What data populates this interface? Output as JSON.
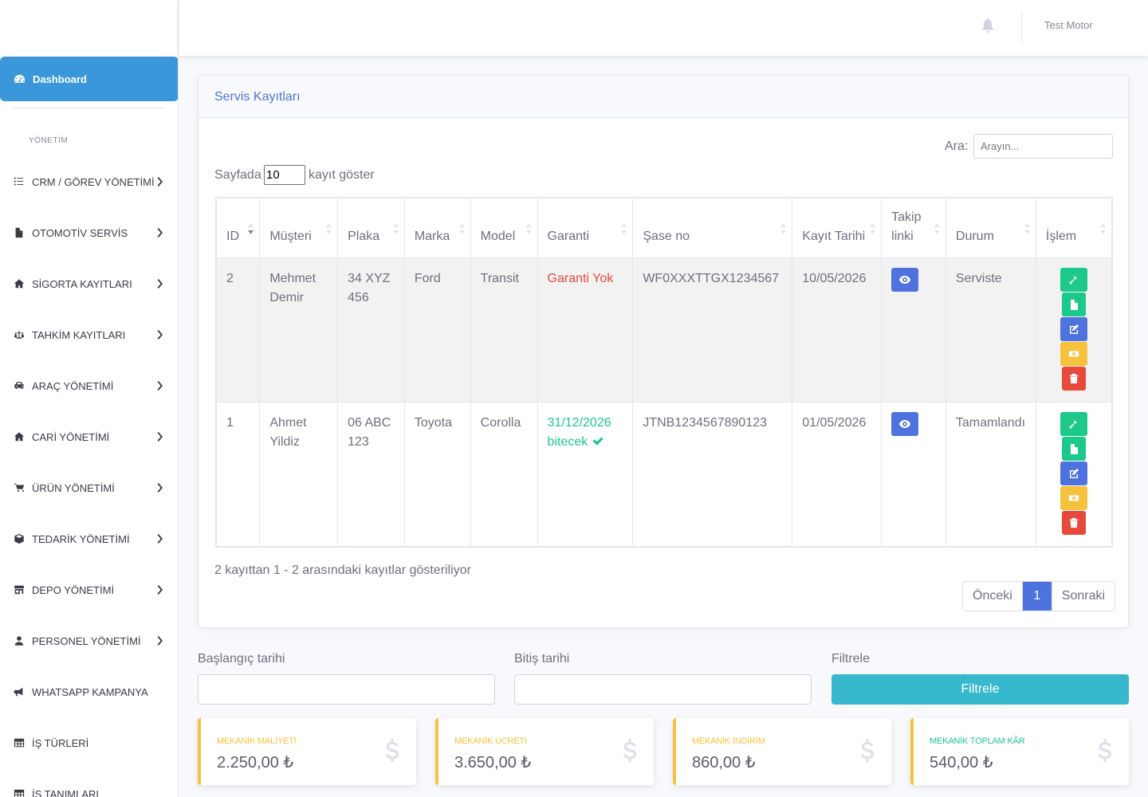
{
  "sidebar": {
    "dashboard_label": "Dashboard",
    "heading": "YÖNETİM",
    "items": [
      {
        "label": "CRM / GÖREV YÖNETİMİ",
        "icon": "tasks-icon"
      },
      {
        "label": "OTOMOTİV SERVİS",
        "icon": "file-icon"
      },
      {
        "label": "SİGORTA KAYITLARI",
        "icon": "home-icon"
      },
      {
        "label": "TAHKİM KAYITLARI",
        "icon": "balance-scale-icon"
      },
      {
        "label": "ARAÇ YÖNETİMİ",
        "icon": "car-icon"
      },
      {
        "label": "CARİ YÖNETİMİ",
        "icon": "home-icon"
      },
      {
        "label": "ÜRÜN YÖNETİMİ",
        "icon": "cart-icon"
      },
      {
        "label": "TEDARİK YÖNETİMİ",
        "icon": "box-icon"
      },
      {
        "label": "DEPO YÖNETİMİ",
        "icon": "store-icon"
      },
      {
        "label": "PERSONEL YÖNETİMİ",
        "icon": "user-icon"
      },
      {
        "label": "WHATSAPP KAMPANYA",
        "icon": "bullhorn-icon"
      },
      {
        "label": "İŞ TÜRLERİ",
        "icon": "table-icon"
      },
      {
        "label": "İŞ TANIMLARI",
        "icon": "table-icon"
      }
    ]
  },
  "topbar": {
    "user_name": "Test Motor"
  },
  "card": {
    "title": "Servis Kayıtları",
    "search_label": "Ara:",
    "search_placeholder": "Arayın...",
    "length_prefix": "Sayfada",
    "length_value": "10",
    "length_suffix": "kayıt göster",
    "columns": [
      "ID",
      "Müşteri",
      "Plaka",
      "Marka",
      "Model",
      "Garanti",
      "Şase no",
      "Kayıt Tarihi",
      "Takip linki",
      "Durum",
      "İşlem"
    ],
    "rows": [
      {
        "id": "2",
        "customer": "Mehmet Demir",
        "plate": "34 XYZ 456",
        "brand": "Ford",
        "model": "Transit",
        "warranty": "Garanti Yok",
        "warranty_status": "none",
        "chassis": "WF0XXXTTGX1234567",
        "date": "10/05/2026",
        "status": "Serviste"
      },
      {
        "id": "1",
        "customer": "Ahmet Yildiz",
        "plate": "06 ABC 123",
        "brand": "Toyota",
        "model": "Corolla",
        "warranty": "31/12/2026 bitecek",
        "warranty_status": "active",
        "chassis": "JTNB1234567890123",
        "date": "01/05/2026",
        "status": "Tamamlandı"
      }
    ],
    "info": "2 kayıttan 1 - 2 arasındaki kayıtlar gösteriliyor",
    "pager": {
      "prev": "Önceki",
      "current": "1",
      "next": "Sonraki"
    }
  },
  "filter": {
    "start_label": "Başlangıç tarihi",
    "end_label": "Bitiş tarihi",
    "action_label": "Filtrele",
    "button_label": "Filtrele"
  },
  "stats": [
    {
      "label": "MEKANİK MALİYETİ",
      "value": "2.250,00 ₺",
      "color": "#f6c23e"
    },
    {
      "label": "MEKANİK ÜCRETİ",
      "value": "3.650,00 ₺",
      "color": "#f6c23e"
    },
    {
      "label": "MEKANİK İNDİRİM",
      "value": "860,00 ₺",
      "color": "#f6c23e"
    },
    {
      "label": "MEKANİK TOPLAM KÂR",
      "value": "540,00 ₺",
      "color": "#1cc88a"
    }
  ],
  "colors": {
    "primary": "#4e73df",
    "sidebar_active": "#3a97d9",
    "success": "#1cc88a",
    "warning": "#f6c23e",
    "danger": "#e74a3b",
    "info": "#36b9cc"
  }
}
